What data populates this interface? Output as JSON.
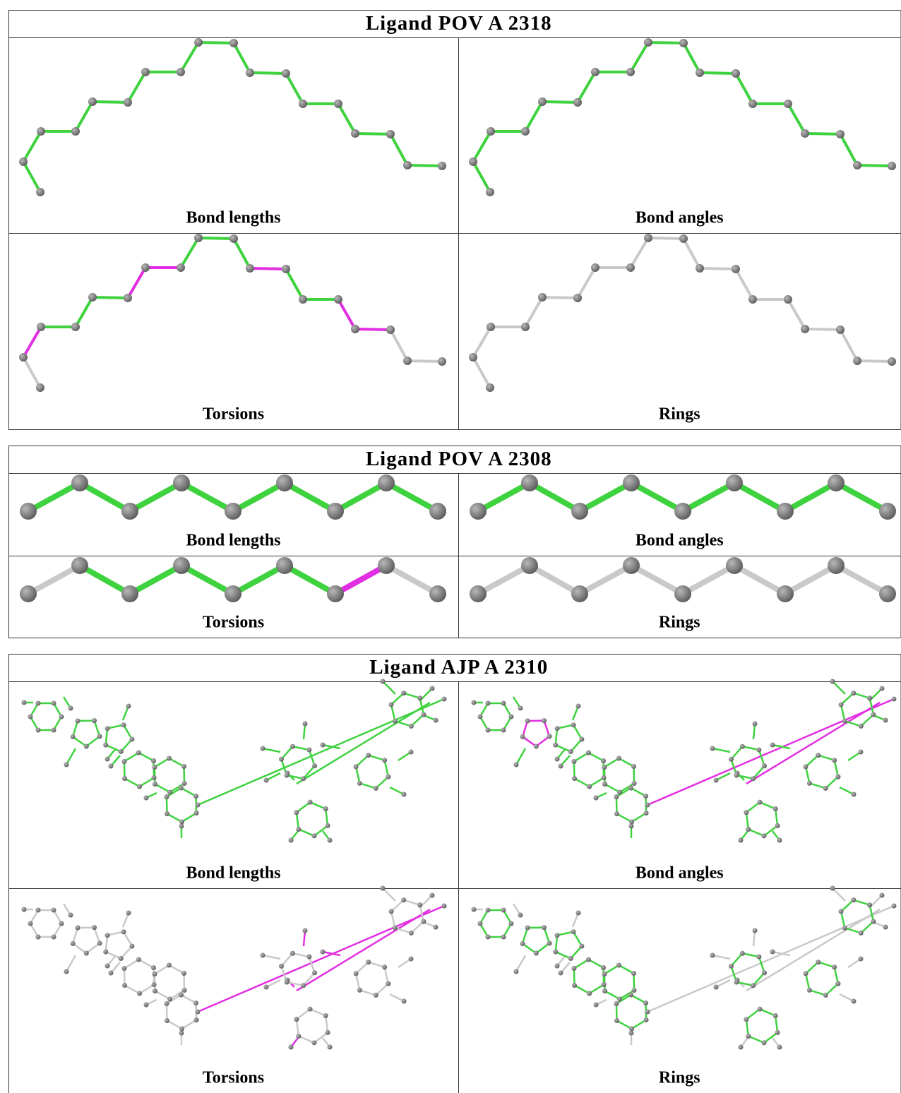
{
  "panels": [
    {
      "title": "Ligand POV A 2318",
      "cells": [
        "Bond lengths",
        "Bond angles",
        "Torsions",
        "Rings"
      ]
    },
    {
      "title": "Ligand POV A 2308",
      "cells": [
        "Bond lengths",
        "Bond angles",
        "Torsions",
        "Rings"
      ]
    },
    {
      "title": "Ligand AJP A 2310",
      "cells": [
        "Bond lengths",
        "Bond angles",
        "Torsions",
        "Rings"
      ]
    }
  ]
}
